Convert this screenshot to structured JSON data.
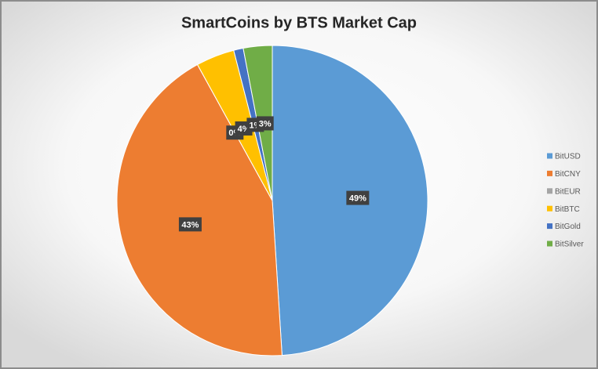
{
  "chart_data": {
    "type": "pie",
    "title": "SmartCoins by BTS Market Cap",
    "categories": [
      "BitUSD",
      "BitCNY",
      "BitEUR",
      "BitBTC",
      "BitGold",
      "BitSilver"
    ],
    "values": [
      49,
      43,
      0,
      4,
      1,
      3
    ],
    "value_labels": [
      "49%",
      "43%",
      "0%",
      "4%",
      "1%",
      "3%"
    ],
    "colors": [
      "#5b9bd5",
      "#ed7d31",
      "#a5a5a5",
      "#ffc000",
      "#4472c4",
      "#70ad47"
    ],
    "legend": "right"
  }
}
